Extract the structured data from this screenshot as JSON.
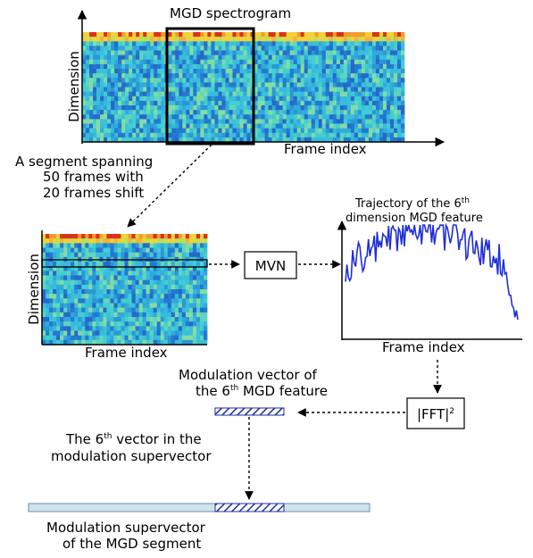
{
  "spectrogram": {
    "title": "MGD spectrogram",
    "ylabel": "Dimension",
    "xlabel": "Frame index"
  },
  "segment_note": {
    "line1": "A segment spanning",
    "line2": "50 frames with",
    "line3": "20 frames shift"
  },
  "segment_plot": {
    "ylabel": "Dimension",
    "xlabel": "Frame index"
  },
  "mvn_box": "MVN",
  "trajectory_plot": {
    "title_line1": "Trajectory of the 6",
    "title_sup": "th",
    "title_line2": "dimension MGD feature",
    "xlabel": "Frame index"
  },
  "fft_box": {
    "text": "|FFT|",
    "sup": "2"
  },
  "modulation_vector": {
    "line1": "Modulation vector of",
    "line2_pre": "the 6",
    "line2_sup": "th",
    "line2_post": " MGD feature"
  },
  "sixth_vector_note": {
    "line1_pre": "The 6",
    "line1_sup": "th",
    "line1_post": " vector in the",
    "line2": "modulation supervector"
  },
  "supervector": {
    "line1": "Modulation supervector",
    "line2": "of the MGD segment"
  },
  "colors": {
    "heat_base": "#33c6d6",
    "heat_hot": "#d8321e",
    "heat_warm": "#f0d23a",
    "trajectory": "#1f2fd6",
    "hatch": "#1f2fa0",
    "supervector_fill": "#cfe3ee"
  }
}
